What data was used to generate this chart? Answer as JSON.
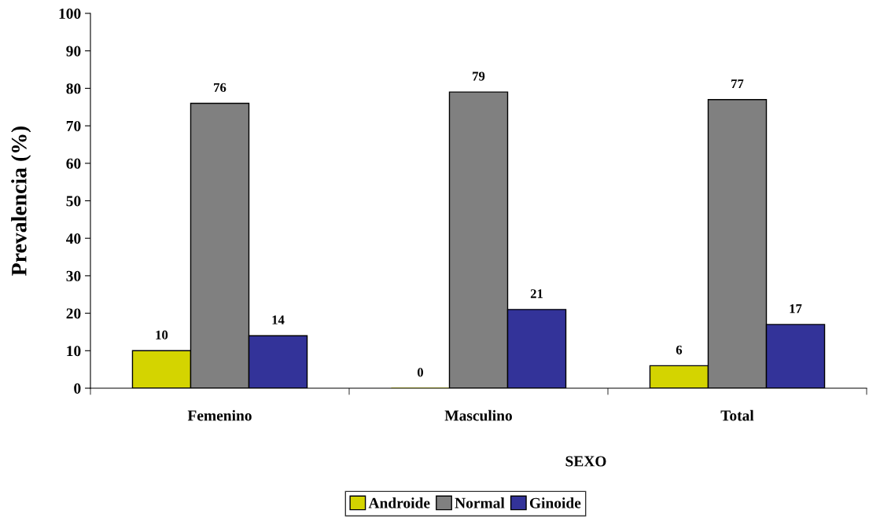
{
  "chart_data": {
    "type": "bar",
    "xlabel": "SEXO",
    "ylabel": "Prevalencia (%)",
    "categories": [
      "Femenino",
      "Masculino",
      "Total"
    ],
    "series": [
      {
        "name": "Androide",
        "color": "#d4d400",
        "values": [
          10,
          0,
          6
        ]
      },
      {
        "name": "Normal",
        "color": "#808080",
        "values": [
          76,
          79,
          77
        ]
      },
      {
        "name": "Ginoide",
        "color": "#333399",
        "values": [
          14,
          21,
          17
        ]
      }
    ],
    "ylim": [
      0,
      100
    ],
    "yticks": [
      0,
      10,
      20,
      30,
      40,
      50,
      60,
      70,
      80,
      90,
      100
    ],
    "grid": false,
    "legend": "bottom",
    "data_labels": true
  }
}
